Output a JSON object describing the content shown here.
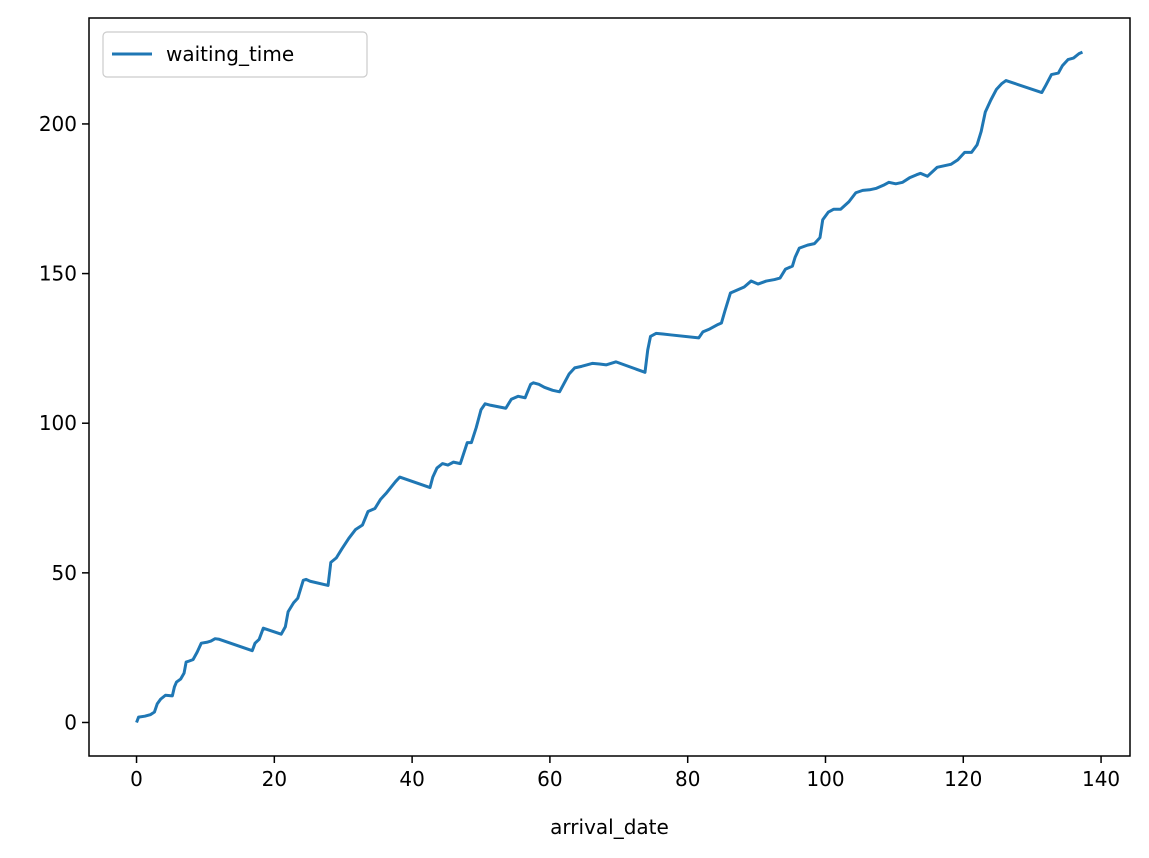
{
  "chart_data": {
    "type": "line",
    "title": "",
    "xlabel": "arrival_date",
    "ylabel": "",
    "xlim": [
      -6.9,
      144.2
    ],
    "ylim": [
      -11.2,
      235.4
    ],
    "xticks": [
      0,
      20,
      40,
      60,
      80,
      100,
      120,
      140
    ],
    "yticks": [
      0,
      50,
      100,
      150,
      200
    ],
    "xtick_labels": [
      "0",
      "20",
      "40",
      "60",
      "80",
      "100",
      "120",
      "140"
    ],
    "ytick_labels": [
      "0",
      "50",
      "100",
      "150",
      "200"
    ],
    "grid": false,
    "legend": {
      "position": "top-left",
      "entries": [
        "waiting_time"
      ]
    },
    "series": [
      {
        "name": "waiting_time",
        "color": "#1f77b4",
        "x": [
          0,
          0.3,
          1.2,
          2.0,
          2.6,
          3.0,
          3.5,
          4.2,
          5.2,
          5.5,
          5.8,
          6.4,
          6.9,
          7.2,
          7.6,
          8.2,
          8.8,
          9.4,
          10.2,
          10.8,
          11.4,
          12.0,
          16.8,
          17.2,
          17.8,
          18.4,
          21.0,
          21.6,
          22.0,
          22.8,
          23.4,
          24.2,
          24.6,
          25.2,
          27.8,
          28.2,
          29.0,
          29.8,
          30.8,
          31.8,
          32.8,
          33.6,
          34.6,
          35.4,
          36.2,
          36.9,
          37.6,
          38.2,
          42.6,
          43.0,
          43.6,
          44.4,
          45.2,
          46.0,
          47.0,
          48.0,
          48.6,
          49.3,
          50.0,
          50.6,
          51.4,
          53.6,
          54.4,
          55.4,
          56.4,
          57.2,
          57.6,
          58.4,
          59.2,
          60.4,
          61.4,
          62.8,
          63.6,
          64.6,
          65.4,
          66.2,
          67.2,
          68.2,
          69.6,
          73.8,
          74.2,
          74.6,
          75.4,
          76.4,
          77.6,
          81.6,
          82.2,
          83.2,
          84.4,
          84.9,
          85.4,
          86.2,
          87.2,
          88.2,
          89.2,
          90.2,
          91.4,
          92.6,
          93.4,
          94.2,
          95.2,
          95.6,
          96.2,
          97.4,
          98.4,
          99.2,
          99.6,
          100.4,
          101.2,
          102.2,
          103.4,
          104.4,
          105.4,
          106.4,
          107.4,
          108.4,
          109.2,
          110.2,
          111.2,
          112.2,
          113.2,
          113.8,
          114.8,
          116.2,
          117.2,
          118.2,
          119.2,
          120.2,
          121.2,
          122.0,
          122.6,
          123.2,
          124.0,
          124.8,
          125.6,
          126.2,
          131.4,
          132.0,
          132.8,
          133.8,
          134.4,
          135.2,
          136.0,
          136.8,
          137.3
        ],
        "y": [
          0,
          1.8,
          2.1,
          2.6,
          3.5,
          6.2,
          7.8,
          9.1,
          8.9,
          11.9,
          13.5,
          14.5,
          16.5,
          20.2,
          20.5,
          21.0,
          23.5,
          26.5,
          26.8,
          27.2,
          28.0,
          27.8,
          24.0,
          26.5,
          27.8,
          31.5,
          29.5,
          32.0,
          37.0,
          40.0,
          41.5,
          47.5,
          47.8,
          47.2,
          45.8,
          53.5,
          55.0,
          58.0,
          61.5,
          64.5,
          66.0,
          70.5,
          71.5,
          74.5,
          76.5,
          78.5,
          80.5,
          82.0,
          78.5,
          82.0,
          85.0,
          86.5,
          86.0,
          87.0,
          86.5,
          93.5,
          93.5,
          98.5,
          104.5,
          106.5,
          106.0,
          105.0,
          108.0,
          109.0,
          108.5,
          113.0,
          113.5,
          113.0,
          112.0,
          111.0,
          110.5,
          116.5,
          118.5,
          119.0,
          119.5,
          120.0,
          119.8,
          119.5,
          120.5,
          117.0,
          124.5,
          129.0,
          130.0,
          129.8,
          129.5,
          128.5,
          130.5,
          131.5,
          133.0,
          133.5,
          137.5,
          143.5,
          144.5,
          145.5,
          147.5,
          146.5,
          147.5,
          148.0,
          148.5,
          151.5,
          152.5,
          155.5,
          158.5,
          159.5,
          160.0,
          162.0,
          168.0,
          170.5,
          171.5,
          171.5,
          174.0,
          177.0,
          177.8,
          178.0,
          178.5,
          179.5,
          180.5,
          180.0,
          180.5,
          182.0,
          183.0,
          183.5,
          182.5,
          185.5,
          186.0,
          186.5,
          188.0,
          190.5,
          190.5,
          193.0,
          197.5,
          204.0,
          208.0,
          211.5,
          213.5,
          214.5,
          210.5,
          213.0,
          216.5,
          217.0,
          219.5,
          221.5,
          222.0,
          223.5,
          224.0
        ]
      }
    ]
  }
}
